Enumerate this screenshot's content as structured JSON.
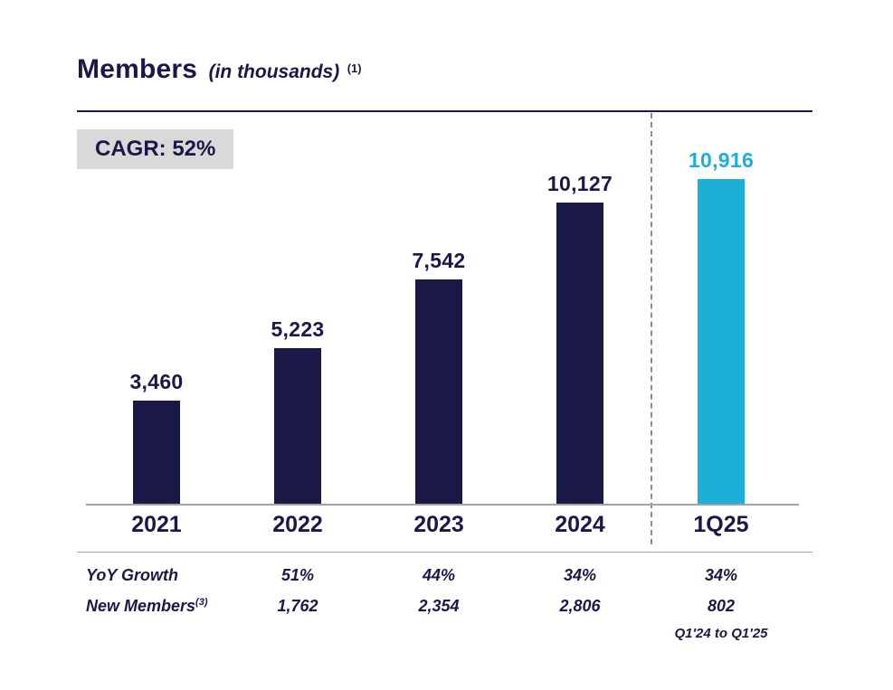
{
  "title": {
    "main": "Members",
    "sub": "(in thousands)",
    "footnote": "(1)"
  },
  "badge": {
    "label": "CAGR: 52%"
  },
  "colors": {
    "navy": "#191847",
    "cyan": "#1cafd8",
    "badge_bg": "#d9d9d9",
    "axis_gray": "#a3a3a3"
  },
  "chart_data": {
    "type": "bar",
    "title": "Members (in thousands)",
    "categories": [
      "2021",
      "2022",
      "2023",
      "2024",
      "1Q25"
    ],
    "values": [
      3460,
      5223,
      7542,
      10127,
      10916
    ],
    "value_labels": [
      "3,460",
      "5,223",
      "7,542",
      "10,127",
      "10,916"
    ],
    "bar_colors": [
      "#191847",
      "#191847",
      "#191847",
      "#191847",
      "#1cafd8"
    ],
    "label_colors": [
      "#191847",
      "#191847",
      "#191847",
      "#191847",
      "#1cafd8"
    ],
    "xlabel": "",
    "ylabel": "Members (thousands)",
    "ylim": [
      0,
      11500
    ],
    "grid": false,
    "legend": false,
    "highlight_index": 4,
    "separator_after_category": "2024",
    "cagr": "52%"
  },
  "table": {
    "rows": [
      {
        "label": "YoY Growth",
        "label_superscript": "",
        "values": [
          "",
          "51%",
          "44%",
          "34%",
          "34%"
        ]
      },
      {
        "label": "New Members",
        "label_superscript": "(3)",
        "values": [
          "",
          "1,762",
          "2,354",
          "2,806",
          "802"
        ]
      }
    ],
    "footnote": "Q1'24 to Q1'25"
  }
}
